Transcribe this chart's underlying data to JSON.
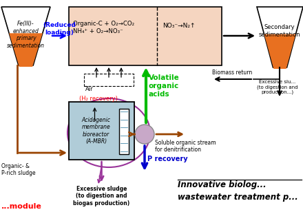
{
  "primary_sed_label": "Fe(III)-\nenhanced\nprimary\nsedimentation",
  "secondary_sed_label": "Secondary\nsedimentation",
  "reduced_loading": "(Reduced\nloading)",
  "bioreactor_box_label": "Acidogenic\nmembrane\nbioreactor\n(A-MBR)",
  "reaction_box_left": "Organic-C + O₂→CO₂\nNH₄⁺ + O₂→NO₃⁻",
  "reaction_box_right": "NO₃⁻→N₂↑",
  "air_label": "Air",
  "volatile_label": "Volatile\norganic\nacids",
  "h2_recovery": "(H₂ recovery)",
  "organic_p_label": "Organic- &\nP-rich sludge",
  "soluble_organic": "Soluble organic stream\nfor denitrification",
  "excessive_sludge": "Excessive sludge\n(to digestion and\nbiogas production)",
  "p_recovery": "P recovery",
  "biomass_return": "Biomass return",
  "excessive_sludge2": "Excessive slu...\n(to digestion and\nproduction...)",
  "module_label": "...module",
  "orange_color": "#E87020",
  "reaction_box_fill": "#F5D5C0",
  "bioreactor_fill": "#B0CCD8",
  "pump_fill": "#C8A8C8",
  "green_arrow": "#00BB00",
  "blue_arrow": "#0000CC",
  "brown_arrow": "#994400",
  "purple_line": "#993399",
  "title_line1": "Innovative biolog...",
  "title_line2": "wastewater treatment p..."
}
